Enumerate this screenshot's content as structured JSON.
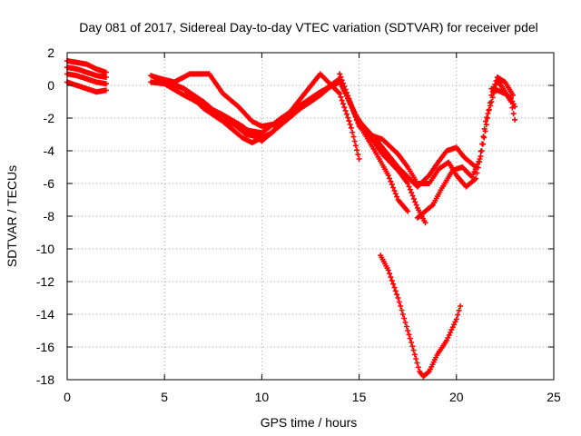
{
  "chart_data": {
    "type": "scatter",
    "title": "Day 081 of 2017, Sidereal Day-to-day VTEC variation (SDTVAR) for receiver pdel",
    "xlabel": "GPS time / hours",
    "ylabel": "SDTVAR / TECUs",
    "xlim": [
      0,
      25
    ],
    "ylim": [
      -18,
      2
    ],
    "xticks": [
      0,
      5,
      10,
      15,
      20,
      25
    ],
    "yticks": [
      2,
      0,
      -2,
      -4,
      -6,
      -8,
      -10,
      -12,
      -14,
      -16,
      -18
    ],
    "grid": true,
    "legend": "none",
    "marker": "plus",
    "color": "#ff0000",
    "series": [
      {
        "values": [
          [
            0,
            1.5
          ],
          [
            0.5,
            1.4
          ],
          [
            1.0,
            1.3
          ],
          [
            1.5,
            1.0
          ],
          [
            2.0,
            0.8
          ]
        ]
      },
      {
        "values": [
          [
            0,
            1.1
          ],
          [
            0.5,
            1.0
          ],
          [
            1.0,
            0.8
          ],
          [
            1.5,
            0.6
          ],
          [
            2.0,
            0.5
          ]
        ]
      },
      {
        "values": [
          [
            0,
            0.7
          ],
          [
            0.5,
            0.6
          ],
          [
            1.0,
            0.4
          ],
          [
            1.5,
            0.2
          ],
          [
            2.0,
            0.1
          ]
        ]
      },
      {
        "values": [
          [
            0,
            0.2
          ],
          [
            0.5,
            0.0
          ],
          [
            1.0,
            -0.2
          ],
          [
            1.5,
            -0.4
          ],
          [
            2.0,
            -0.3
          ]
        ]
      },
      {
        "values": [
          [
            4.3,
            0.6
          ],
          [
            5.0,
            0.3
          ],
          [
            6.0,
            -0.2
          ],
          [
            7.0,
            -1.0
          ],
          [
            8.0,
            -2.0
          ],
          [
            9.0,
            -2.7
          ],
          [
            10.0,
            -2.9
          ],
          [
            11.0,
            -2.0
          ],
          [
            12.0,
            -1.2
          ],
          [
            13.0,
            -0.4
          ],
          [
            14.0,
            0.2
          ],
          [
            15.0,
            -2.2
          ],
          [
            16.0,
            -3.5
          ],
          [
            17.0,
            -5.0
          ],
          [
            18.0,
            -6.2
          ],
          [
            18.6,
            -5.5
          ],
          [
            19.0,
            -4.8
          ],
          [
            19.5,
            -4.0
          ],
          [
            20.0,
            -3.8
          ],
          [
            20.4,
            -4.4
          ],
          [
            21.0,
            -5.0
          ]
        ]
      },
      {
        "values": [
          [
            4.3,
            0.2
          ],
          [
            5.0,
            0.1
          ],
          [
            6.0,
            -0.6
          ],
          [
            7.0,
            -1.2
          ],
          [
            8.0,
            -1.8
          ],
          [
            9.0,
            -2.5
          ],
          [
            10.0,
            -3.4
          ],
          [
            11.0,
            -2.4
          ],
          [
            12.0,
            -1.4
          ],
          [
            13.0,
            -0.6
          ],
          [
            14.0,
            0.4
          ],
          [
            14.8,
            -1.8
          ],
          [
            15.5,
            -3.0
          ],
          [
            16.2,
            -4.2
          ],
          [
            17.0,
            -5.2
          ],
          [
            17.5,
            -6.0
          ],
          [
            18.0,
            -7.5
          ],
          [
            18.4,
            -8.4
          ]
        ]
      },
      {
        "values": [
          [
            4.5,
            0.5
          ],
          [
            5.5,
            0.2
          ],
          [
            6.3,
            0.7
          ],
          [
            7.3,
            0.7
          ],
          [
            8.0,
            -0.5
          ],
          [
            8.8,
            -1.3
          ],
          [
            9.5,
            -2.2
          ],
          [
            10.0,
            -2.5
          ],
          [
            11.0,
            -2.3
          ],
          [
            12.0,
            -0.8
          ],
          [
            13.0,
            0.7
          ],
          [
            14.0,
            -0.5
          ],
          [
            14.6,
            -2.6
          ],
          [
            15.0,
            -4.5
          ]
        ]
      },
      {
        "values": [
          [
            5.0,
            0.3
          ],
          [
            6.0,
            -0.2
          ],
          [
            7.0,
            -1.4
          ],
          [
            8.0,
            -2.2
          ],
          [
            9.0,
            -3.2
          ],
          [
            9.5,
            -3.5
          ],
          [
            10.5,
            -2.9
          ],
          [
            11.5,
            -1.6
          ],
          [
            12.5,
            -1.0
          ],
          [
            13.3,
            -0.2
          ],
          [
            14.0,
            0.4
          ],
          [
            14.5,
            -1.0
          ],
          [
            15.0,
            -2.4
          ],
          [
            15.8,
            -4.0
          ],
          [
            16.5,
            -5.5
          ],
          [
            17.0,
            -7.0
          ],
          [
            17.5,
            -7.7
          ]
        ]
      },
      {
        "values": [
          [
            6.5,
            -0.9
          ],
          [
            7.5,
            -1.6
          ],
          [
            8.5,
            -2.3
          ],
          [
            9.2,
            -3.0
          ],
          [
            10.0,
            -3.2
          ]
        ]
      },
      {
        "values": [
          [
            14.0,
            0.7
          ],
          [
            14.6,
            -1.2
          ],
          [
            15.0,
            -2.5
          ],
          [
            15.5,
            -3.0
          ],
          [
            16.2,
            -3.3
          ],
          [
            17.0,
            -4.2
          ],
          [
            17.5,
            -5.0
          ],
          [
            18.0,
            -6.0
          ],
          [
            18.6,
            -6.0
          ],
          [
            19.1,
            -5.1
          ],
          [
            19.6,
            -4.7
          ],
          [
            20.0,
            -5.5
          ],
          [
            20.5,
            -6.2
          ],
          [
            21.0,
            -5.7
          ],
          [
            21.3,
            -4.0
          ],
          [
            21.6,
            -2.0
          ],
          [
            21.8,
            -0.6
          ],
          [
            22.1,
            0.5
          ],
          [
            22.5,
            0.2
          ],
          [
            22.9,
            -0.6
          ]
        ]
      },
      {
        "values": [
          [
            18.0,
            -8.1
          ],
          [
            18.8,
            -7.3
          ],
          [
            19.2,
            -6.4
          ],
          [
            19.8,
            -5.2
          ],
          [
            20.3,
            -5.0
          ],
          [
            20.8,
            -5.6
          ],
          [
            21.2,
            -4.5
          ],
          [
            21.5,
            -2.2
          ],
          [
            21.8,
            -1.0
          ],
          [
            22.1,
            0.3
          ],
          [
            22.4,
            -0.2
          ],
          [
            22.8,
            -1.0
          ],
          [
            23.0,
            -2.1
          ]
        ]
      },
      {
        "values": [
          [
            21.8,
            -0.2
          ],
          [
            22.1,
            -0.3
          ],
          [
            22.5,
            -0.5
          ],
          [
            22.8,
            -0.8
          ],
          [
            23.0,
            -1.3
          ]
        ]
      },
      {
        "values": [
          [
            16.1,
            -10.4
          ],
          [
            16.5,
            -11.3
          ],
          [
            17.0,
            -13.0
          ],
          [
            17.5,
            -15.0
          ],
          [
            17.8,
            -16.2
          ],
          [
            18.1,
            -17.5
          ],
          [
            18.3,
            -17.8
          ],
          [
            18.6,
            -17.5
          ],
          [
            19.0,
            -16.5
          ],
          [
            19.5,
            -15.6
          ],
          [
            20.0,
            -14.3
          ],
          [
            20.2,
            -13.5
          ]
        ]
      }
    ]
  }
}
